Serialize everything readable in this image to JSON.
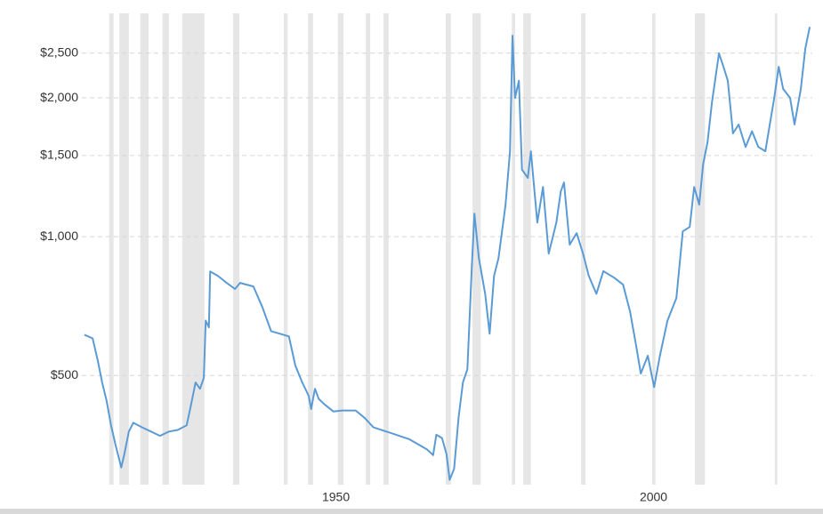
{
  "chart_data": {
    "type": "line",
    "log_y": true,
    "grid": true,
    "xlim": [
      1910,
      2025
    ],
    "xticks": [
      1950,
      2000
    ],
    "ylim": [
      290,
      3050
    ],
    "yticks": [
      {
        "value": 500,
        "label": "$500"
      },
      {
        "value": 1000,
        "label": "$1,000"
      },
      {
        "value": 1500,
        "label": "$1,500"
      },
      {
        "value": 2000,
        "label": "$2,000"
      },
      {
        "value": 2500,
        "label": "$2,500"
      }
    ],
    "recession_color": "#e6e6e6",
    "recessions": [
      [
        1914.3,
        1915.0
      ],
      [
        1915.9,
        1917.4
      ],
      [
        1919.2,
        1920.5
      ],
      [
        1922.7,
        1923.7
      ],
      [
        1925.8,
        1929.3
      ],
      [
        1933.8,
        1934.8
      ],
      [
        1941.8,
        1942.4
      ],
      [
        1945.6,
        1946.4
      ],
      [
        1950.3,
        1951.2
      ],
      [
        1954.7,
        1955.4
      ],
      [
        1957.5,
        1958.3
      ],
      [
        1967.3,
        1968.1
      ],
      [
        1971.5,
        1972.8
      ],
      [
        1977.7,
        1978.2
      ],
      [
        1979.5,
        1980.7
      ],
      [
        1988.6,
        1989.3
      ],
      [
        1999.8,
        2000.3
      ],
      [
        2006.5,
        2008.1
      ],
      [
        2019.1,
        2019.5
      ]
    ],
    "series": [
      {
        "color": "#5b9bd5",
        "x": [
          1910.4,
          1911.7,
          1912.5,
          1913.2,
          1913.9,
          1914.6,
          1915.3,
          1916.2,
          1916.7,
          1917.4,
          1918.1,
          1919.5,
          1920.9,
          1922.3,
          1923.7,
          1925.1,
          1926.5,
          1927.2,
          1927.9,
          1928.6,
          1929.2,
          1929.5,
          1930.0,
          1930.2,
          1931.4,
          1932.8,
          1934.1,
          1934.9,
          1937.0,
          1938.4,
          1939.8,
          1941.2,
          1942.6,
          1943.6,
          1944.7,
          1945.7,
          1946.1,
          1946.7,
          1947.3,
          1948.2,
          1949.6,
          1951.0,
          1953.1,
          1954.5,
          1955.9,
          1958.7,
          1961.5,
          1964.3,
          1965.3,
          1965.8,
          1966.7,
          1967.4,
          1967.9,
          1968.6,
          1969.3,
          1970.0,
          1970.7,
          1971.4,
          1971.8,
          1972.5,
          1973.5,
          1974.2,
          1974.9,
          1975.6,
          1976.7,
          1977.4,
          1977.8,
          1978.2,
          1978.8,
          1979.3,
          1980.2,
          1980.7,
          1981.7,
          1982.6,
          1983.5,
          1984.7,
          1985.4,
          1985.9,
          1986.8,
          1987.9,
          1988.9,
          1989.8,
          1991.0,
          1992.1,
          1993.8,
          1995.2,
          1996.3,
          1997.3,
          1998.0,
          1999.1,
          2000.1,
          2001.0,
          2002.2,
          2003.6,
          2004.6,
          2005.7,
          2006.4,
          2007.2,
          2007.8,
          2008.5,
          2009.2,
          2010.3,
          2011.0,
          2011.7,
          2012.5,
          2013.4,
          2014.5,
          2015.5,
          2016.5,
          2017.6,
          2018.3,
          2019.0,
          2019.7,
          2020.4,
          2021.5,
          2022.2,
          2023.2,
          2023.9,
          2024.6
        ],
        "values": [
          613,
          602,
          540,
          483,
          441,
          390,
          354,
          316,
          338,
          378,
          395,
          386,
          378,
          370,
          378,
          381,
          390,
          433,
          483,
          468,
          494,
          658,
          636,
          841,
          823,
          794,
          770,
          794,
          780,
          704,
          624,
          616,
          608,
          526,
          483,
          452,
          423,
          468,
          445,
          433,
          418,
          420,
          420,
          405,
          386,
          375,
          364,
          346,
          336,
          372,
          366,
          338,
          297,
          314,
          405,
          483,
          516,
          860,
          1122,
          899,
          752,
          616,
          823,
          899,
          1173,
          1532,
          2728,
          2000,
          2179,
          1398,
          1341,
          1532,
          1073,
          1282,
          919,
          1073,
          1254,
          1311,
          961,
          1018,
          919,
          823,
          752,
          842,
          815,
          787,
          689,
          577,
          505,
          552,
          472,
          552,
          658,
          736,
          1027,
          1050,
          1282,
          1173,
          1434,
          1602,
          1956,
          2499,
          2336,
          2179,
          1675,
          1751,
          1566,
          1693,
          1566,
          1532,
          1751,
          2000,
          2336,
          2092,
          2000,
          1751,
          2092,
          2557,
          2850
        ]
      }
    ]
  }
}
